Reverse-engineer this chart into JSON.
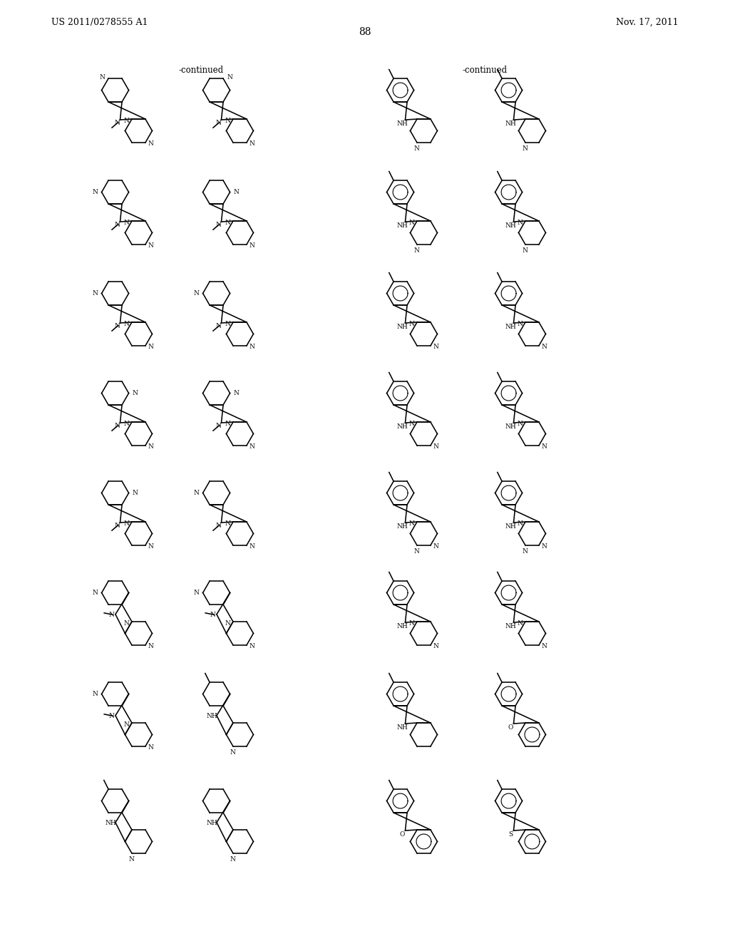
{
  "background_color": "#ffffff",
  "header_left": "US 2011/0278555 A1",
  "header_right": "Nov. 17, 2011",
  "page_number": "88"
}
